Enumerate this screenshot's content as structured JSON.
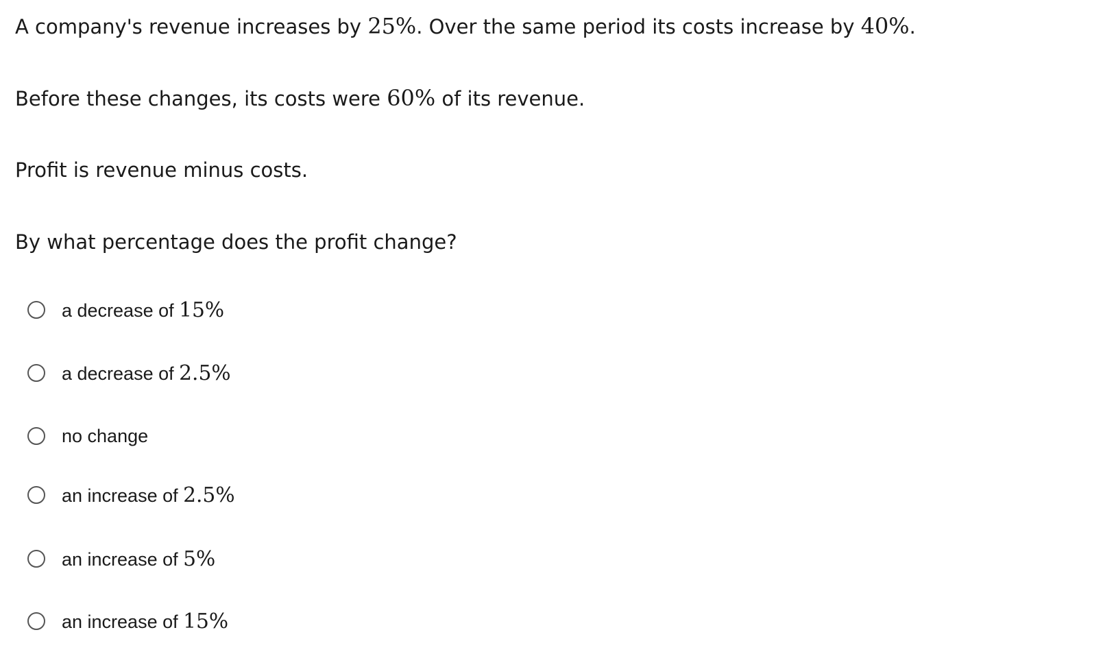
{
  "question": {
    "paragraphs": [
      [
        "A company's revenue increases by ",
        {
          "math": "25%"
        },
        ". Over the same period its costs increase by ",
        {
          "math": "40%"
        },
        "."
      ],
      [
        "Before these changes, its costs were ",
        {
          "math": "60%"
        },
        " of its revenue."
      ],
      [
        "Profit is revenue minus costs."
      ],
      [
        "By what percentage does the profit change?"
      ]
    ],
    "options": [
      [
        "a decrease of ",
        {
          "math": "15%"
        }
      ],
      [
        "a decrease of ",
        {
          "math": "2.5%"
        }
      ],
      [
        "no change"
      ],
      [
        "an increase of ",
        {
          "math": "2.5%"
        }
      ],
      [
        "an increase of ",
        {
          "math": "5%"
        }
      ],
      [
        "an increase of ",
        {
          "math": "15%"
        }
      ]
    ]
  }
}
